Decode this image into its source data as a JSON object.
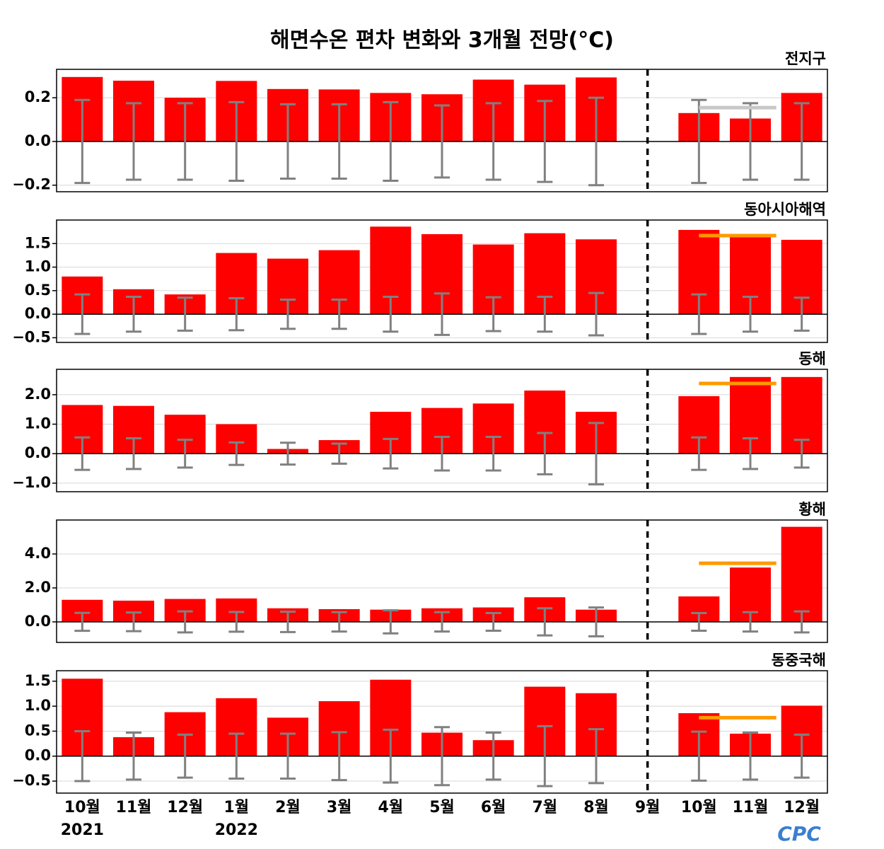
{
  "title": "해면수온 편차 변화와 3개월 전망(°C)",
  "categories": [
    "10월",
    "11월",
    "12월",
    "1월",
    "2월",
    "3월",
    "4월",
    "5월",
    "6월",
    "7월",
    "8월",
    "9월",
    "10월",
    "11월",
    "12월"
  ],
  "year_labels": [
    "2021",
    null,
    null,
    "2022",
    null,
    null,
    null,
    null,
    null,
    null,
    null,
    null,
    null,
    null,
    null
  ],
  "logo": "CPC",
  "chart_data": [
    {
      "type": "bar",
      "title": "전지구",
      "color": "#ff0000",
      "error_color": "#808080",
      "forecast_color": "#c8c8c8",
      "grid": true,
      "values": [
        0.295,
        0.278,
        0.2,
        0.277,
        0.24,
        0.238,
        0.222,
        0.216,
        0.283,
        0.26,
        0.293,
        null,
        0.13,
        0.105,
        0.222
      ],
      "errors": [
        0.19,
        0.175,
        0.175,
        0.18,
        0.17,
        0.17,
        0.18,
        0.165,
        0.175,
        0.185,
        0.2,
        null,
        0.19,
        0.175,
        0.175
      ],
      "forecast": 0.155,
      "ylim": [
        -0.23,
        0.33
      ],
      "yticks": [
        {
          "value": -0.2,
          "label": "−0.2"
        },
        {
          "value": 0,
          "label": "0.0"
        },
        0.2
      ]
    },
    {
      "type": "bar",
      "title": "동아시아해역",
      "color": "#ff0000",
      "error_color": "#808080",
      "forecast_color": "#ff9900",
      "grid": true,
      "values": [
        0.8,
        0.53,
        0.42,
        1.3,
        1.18,
        1.36,
        1.86,
        1.7,
        1.48,
        1.72,
        1.59,
        null,
        1.79,
        1.67,
        1.58
      ],
      "errors": [
        0.42,
        0.37,
        0.35,
        0.34,
        0.31,
        0.31,
        0.37,
        0.44,
        0.36,
        0.37,
        0.45,
        null,
        0.42,
        0.37,
        0.35
      ],
      "forecast": 1.67,
      "ylim": [
        -0.6,
        2.0
      ],
      "yticks": [
        {
          "value": -0.5,
          "label": "−0.5"
        },
        {
          "value": 0,
          "label": "0.0"
        },
        0.5,
        {
          "value": 1,
          "label": "1.0"
        },
        1.5
      ]
    },
    {
      "type": "bar",
      "title": "동해",
      "color": "#ff0000",
      "error_color": "#808080",
      "forecast_color": "#ff9900",
      "grid": true,
      "values": [
        1.65,
        1.62,
        1.32,
        1.0,
        0.16,
        0.46,
        1.42,
        1.55,
        1.7,
        2.14,
        1.42,
        null,
        1.95,
        2.6,
        2.6
      ],
      "errors": [
        0.55,
        0.52,
        0.47,
        0.38,
        0.37,
        0.34,
        0.5,
        0.57,
        0.57,
        0.7,
        1.04,
        null,
        0.55,
        0.52,
        0.47
      ],
      "forecast": 2.38,
      "ylim": [
        -1.29,
        2.86
      ],
      "yticks": [
        {
          "value": -1,
          "label": "−1.0"
        },
        {
          "value": 0,
          "label": "0.0"
        },
        {
          "value": 1,
          "label": "1.0"
        },
        {
          "value": 2,
          "label": "2.0"
        }
      ]
    },
    {
      "type": "bar",
      "title": "황해",
      "color": "#ff0000",
      "error_color": "#808080",
      "forecast_color": "#ff9900",
      "grid": true,
      "values": [
        1.3,
        1.25,
        1.35,
        1.38,
        0.8,
        0.75,
        0.72,
        0.8,
        0.85,
        1.45,
        0.72,
        null,
        1.5,
        3.2,
        5.6
      ],
      "errors": [
        0.53,
        0.55,
        0.62,
        0.58,
        0.6,
        0.57,
        0.68,
        0.57,
        0.52,
        0.8,
        0.85,
        null,
        0.52,
        0.57,
        0.62
      ],
      "forecast": 3.45,
      "ylim": [
        -1.21,
        6.0
      ],
      "yticks": [
        {
          "value": 0,
          "label": "0.0"
        },
        {
          "value": 2,
          "label": "2.0"
        },
        {
          "value": 4,
          "label": "4.0"
        }
      ]
    },
    {
      "type": "bar",
      "title": "동중국해",
      "color": "#ff0000",
      "error_color": "#808080",
      "forecast_color": "#ff9900",
      "grid": true,
      "values": [
        1.55,
        0.38,
        0.88,
        1.16,
        0.77,
        1.1,
        1.53,
        0.47,
        0.32,
        1.39,
        1.26,
        null,
        0.86,
        0.45,
        1.01
      ],
      "errors": [
        0.5,
        0.47,
        0.43,
        0.45,
        0.45,
        0.48,
        0.53,
        0.58,
        0.47,
        0.6,
        0.54,
        null,
        0.49,
        0.47,
        0.43
      ],
      "forecast": 0.77,
      "ylim": [
        -0.74,
        1.71
      ],
      "yticks": [
        {
          "value": -0.5,
          "label": "−0.5"
        },
        {
          "value": 0,
          "label": "0.0"
        },
        0.5,
        {
          "value": 1,
          "label": "1.0"
        },
        1.5
      ]
    }
  ]
}
